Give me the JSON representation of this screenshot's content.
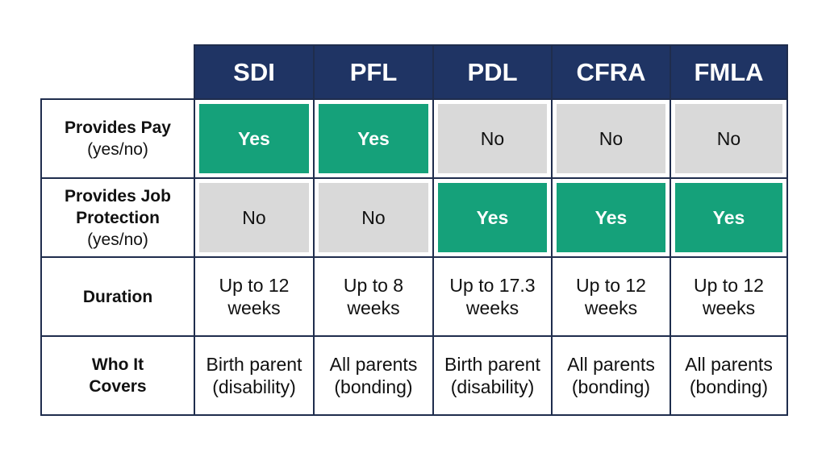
{
  "table": {
    "columns": [
      "SDI",
      "PFL",
      "PDL",
      "CFRA",
      "FMLA"
    ],
    "rows": [
      {
        "label": [
          "Provides Pay"
        ],
        "sublabel": "(yes/no)",
        "cells": [
          [
            "Yes"
          ],
          [
            "Yes"
          ],
          [
            "No"
          ],
          [
            "No"
          ],
          [
            "No"
          ]
        ]
      },
      {
        "label": [
          "Provides Job",
          "Protection"
        ],
        "sublabel": "(yes/no)",
        "cells": [
          [
            "No"
          ],
          [
            "No"
          ],
          [
            "Yes"
          ],
          [
            "Yes"
          ],
          [
            "Yes"
          ]
        ]
      },
      {
        "label": [
          "Duration"
        ],
        "cells": [
          [
            "Up to 12",
            "weeks"
          ],
          [
            "Up to 8",
            "weeks"
          ],
          [
            "Up to 17.3",
            "weeks"
          ],
          [
            "Up to 12",
            "weeks"
          ],
          [
            "Up to 12",
            "weeks"
          ]
        ]
      },
      {
        "label": [
          "Who It",
          "Covers"
        ],
        "cells": [
          [
            "Birth parent",
            "(disability)"
          ],
          [
            "All parents",
            "(bonding)"
          ],
          [
            "Birth parent",
            "(disability)"
          ],
          [
            "All parents",
            "(bonding)"
          ],
          [
            "All parents",
            "(bonding)"
          ]
        ]
      }
    ]
  }
}
